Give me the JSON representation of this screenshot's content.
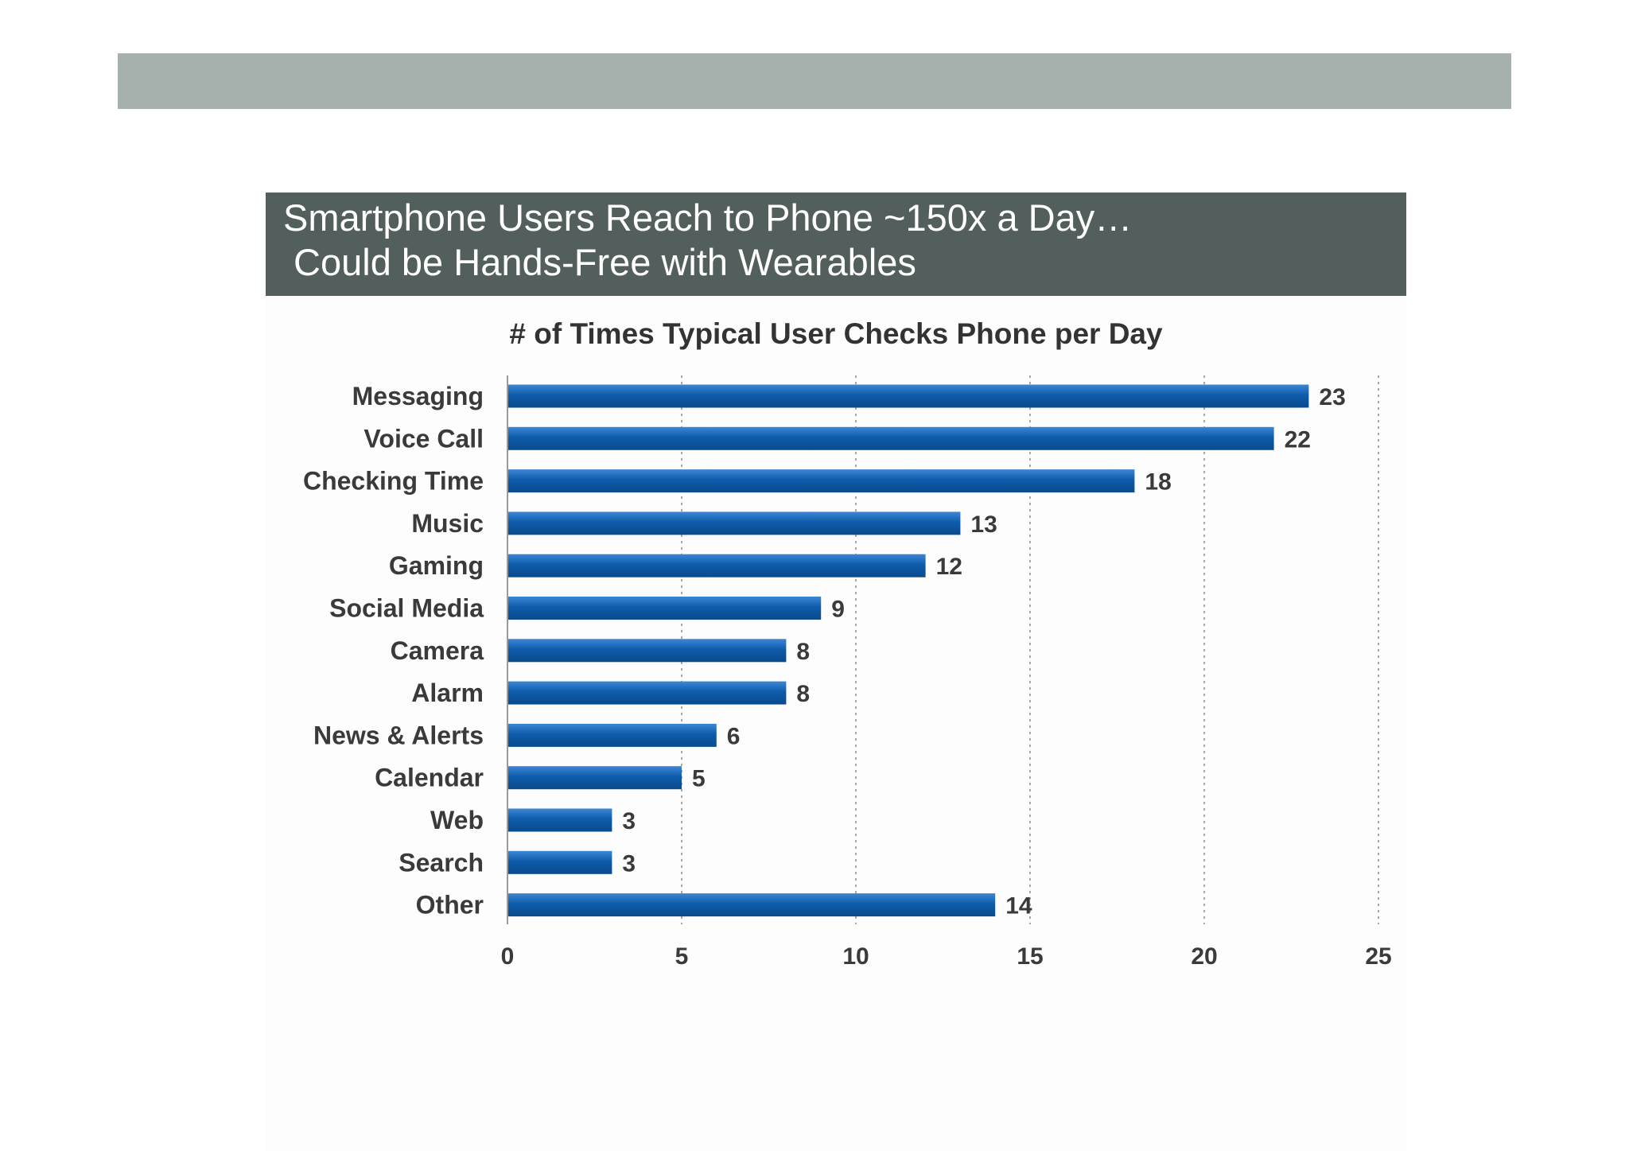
{
  "headline": {
    "line1": "Smartphone Users Reach to Phone ~150x a Day…",
    "line2": " Could be Hands-Free with Wearables"
  },
  "chart_data": {
    "type": "bar",
    "orientation": "horizontal",
    "title": "# of Times Typical User Checks Phone per Day",
    "categories": [
      "Messaging",
      "Voice Call",
      "Checking Time",
      "Music",
      "Gaming",
      "Social Media",
      "Camera",
      "Alarm",
      "News & Alerts",
      "Calendar",
      "Web",
      "Search",
      "Other"
    ],
    "values": [
      23,
      22,
      18,
      13,
      12,
      9,
      8,
      8,
      6,
      5,
      3,
      3,
      14
    ],
    "xticks": [
      "0",
      "5",
      "10",
      "15",
      "20",
      "25"
    ],
    "xlim": [
      0,
      25
    ],
    "grid": "vertical dotted",
    "bar_color": "#0e5cab"
  }
}
